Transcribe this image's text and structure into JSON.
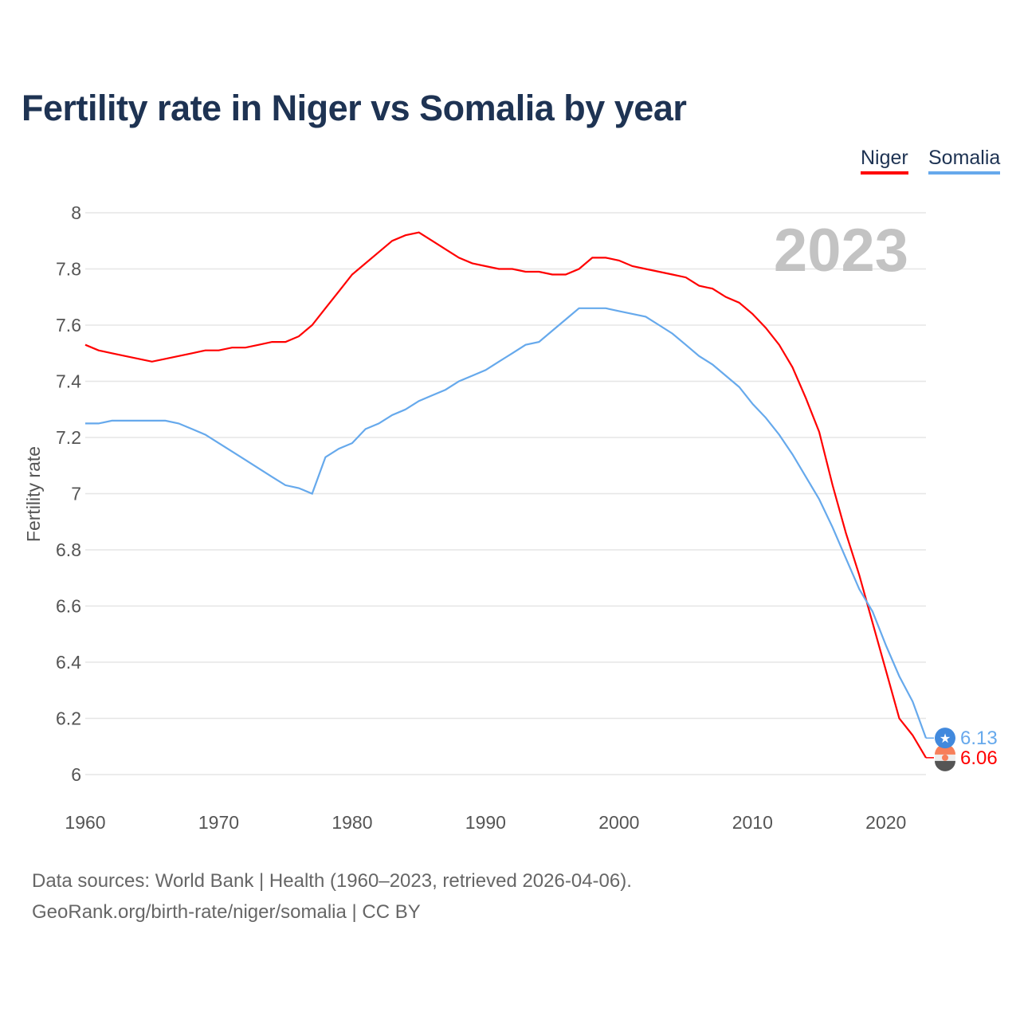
{
  "title": "Fertility rate in Niger vs Somalia by year",
  "legend": {
    "niger": "Niger",
    "somalia": "Somalia"
  },
  "footer": {
    "line1": "Data sources: World Bank | Health (1960–2023, retrieved 2026-04-06).",
    "line2": "GeoRank.org/birth-rate/niger/somalia | CC BY"
  },
  "chart_data": {
    "type": "line",
    "title": "Fertility rate in Niger vs Somalia by year",
    "xlabel": "",
    "ylabel": "Fertility rate",
    "year_watermark": "2023",
    "xlim": [
      1960,
      2023
    ],
    "ylim": [
      6,
      8
    ],
    "xticks": [
      "1960",
      "1970",
      "1980",
      "1990",
      "2000",
      "2010",
      "2020"
    ],
    "yticks": [
      "6",
      "6.2",
      "6.4",
      "6.6",
      "6.8",
      "7",
      "7.2",
      "7.4",
      "7.6",
      "7.8",
      "8"
    ],
    "x_start": 1960,
    "series": [
      {
        "name": "Niger",
        "color": "#ff0000",
        "end_label": "6.06",
        "values": [
          7.53,
          7.51,
          7.5,
          7.49,
          7.48,
          7.47,
          7.48,
          7.49,
          7.5,
          7.51,
          7.51,
          7.52,
          7.52,
          7.53,
          7.54,
          7.54,
          7.56,
          7.6,
          7.66,
          7.72,
          7.78,
          7.82,
          7.86,
          7.9,
          7.92,
          7.93,
          7.9,
          7.87,
          7.84,
          7.82,
          7.81,
          7.8,
          7.8,
          7.79,
          7.79,
          7.78,
          7.78,
          7.8,
          7.84,
          7.84,
          7.83,
          7.81,
          7.8,
          7.79,
          7.78,
          7.77,
          7.74,
          7.73,
          7.7,
          7.68,
          7.64,
          7.59,
          7.53,
          7.45,
          7.34,
          7.22,
          7.03,
          6.86,
          6.71,
          6.54,
          6.37,
          6.2,
          6.14,
          6.06
        ]
      },
      {
        "name": "Somalia",
        "color": "#66a9ec",
        "end_label": "6.13",
        "values": [
          7.25,
          7.25,
          7.26,
          7.26,
          7.26,
          7.26,
          7.26,
          7.25,
          7.23,
          7.21,
          7.18,
          7.15,
          7.12,
          7.09,
          7.06,
          7.03,
          7.02,
          7.0,
          7.13,
          7.16,
          7.18,
          7.23,
          7.25,
          7.28,
          7.3,
          7.33,
          7.35,
          7.37,
          7.4,
          7.42,
          7.44,
          7.47,
          7.5,
          7.53,
          7.54,
          7.58,
          7.62,
          7.66,
          7.66,
          7.66,
          7.65,
          7.64,
          7.63,
          7.6,
          7.57,
          7.53,
          7.49,
          7.46,
          7.42,
          7.38,
          7.32,
          7.27,
          7.21,
          7.14,
          7.06,
          6.98,
          6.88,
          6.77,
          6.66,
          6.58,
          6.46,
          6.35,
          6.26,
          6.13
        ]
      }
    ],
    "grid": true,
    "legend_position": "top-right"
  }
}
